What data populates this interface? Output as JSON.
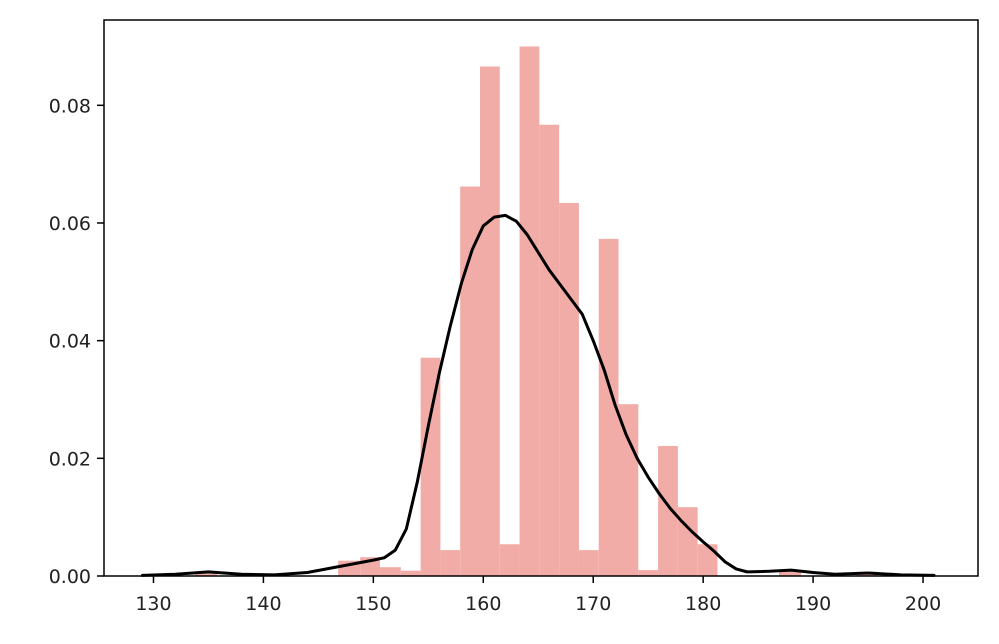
{
  "chart_data": {
    "type": "bar",
    "title": "",
    "xlabel": "",
    "ylabel": "",
    "xlim": [
      125.5,
      205
    ],
    "ylim": [
      0,
      0.0945
    ],
    "x_ticks": [
      "130",
      "140",
      "150",
      "160",
      "170",
      "180",
      "190",
      "200"
    ],
    "y_ticks": [
      "0.00",
      "0.02",
      "0.04",
      "0.06",
      "0.08"
    ],
    "grid": false,
    "legend": "none",
    "histogram": {
      "color": "#f2aca8",
      "bins": [
        {
          "start": 133.8,
          "end": 135.8,
          "value": 0.0008
        },
        {
          "start": 146.8,
          "end": 148.8,
          "value": 0.0026
        },
        {
          "start": 148.8,
          "end": 150.6,
          "value": 0.0032
        },
        {
          "start": 150.6,
          "end": 152.5,
          "value": 0.0015
        },
        {
          "start": 152.5,
          "end": 154.3,
          "value": 0.0009
        },
        {
          "start": 154.3,
          "end": 156.1,
          "value": 0.0371
        },
        {
          "start": 156.1,
          "end": 157.9,
          "value": 0.0044
        },
        {
          "start": 157.9,
          "end": 159.7,
          "value": 0.0662
        },
        {
          "start": 159.7,
          "end": 161.5,
          "value": 0.0866
        },
        {
          "start": 161.5,
          "end": 163.3,
          "value": 0.0054
        },
        {
          "start": 163.3,
          "end": 165.1,
          "value": 0.09
        },
        {
          "start": 165.1,
          "end": 166.9,
          "value": 0.0767
        },
        {
          "start": 166.9,
          "end": 168.7,
          "value": 0.0634
        },
        {
          "start": 168.7,
          "end": 170.5,
          "value": 0.0044
        },
        {
          "start": 170.5,
          "end": 172.3,
          "value": 0.0573
        },
        {
          "start": 172.3,
          "end": 174.1,
          "value": 0.0292
        },
        {
          "start": 174.1,
          "end": 175.9,
          "value": 0.001
        },
        {
          "start": 175.9,
          "end": 177.7,
          "value": 0.0221
        },
        {
          "start": 177.7,
          "end": 179.5,
          "value": 0.0117
        },
        {
          "start": 179.5,
          "end": 181.3,
          "value": 0.0054
        },
        {
          "start": 186.9,
          "end": 188.9,
          "value": 0.0009
        },
        {
          "start": 193.9,
          "end": 195.9,
          "value": 0.0007
        }
      ]
    },
    "kde": {
      "color": "#000000",
      "x": [
        129,
        132,
        135,
        138,
        141,
        144,
        146,
        148,
        150,
        151,
        152,
        153,
        154,
        155,
        156,
        157,
        158,
        159,
        160,
        161,
        162,
        163,
        164,
        165,
        166,
        167,
        168,
        169,
        170,
        171,
        172,
        173,
        174,
        175,
        176,
        177,
        178,
        179,
        180,
        181,
        182,
        183,
        184,
        186,
        188,
        190,
        192,
        195,
        198,
        201
      ],
      "y": [
        0.0001,
        0.0003,
        0.0007,
        0.0003,
        0.0002,
        0.0006,
        0.0013,
        0.002,
        0.0027,
        0.0031,
        0.0044,
        0.008,
        0.016,
        0.0255,
        0.0345,
        0.0425,
        0.0497,
        0.0555,
        0.0595,
        0.061,
        0.0613,
        0.0603,
        0.058,
        0.055,
        0.052,
        0.0495,
        0.047,
        0.0445,
        0.04,
        0.035,
        0.029,
        0.024,
        0.02,
        0.0168,
        0.014,
        0.0115,
        0.0094,
        0.0075,
        0.0058,
        0.0042,
        0.0024,
        0.0012,
        0.0007,
        0.0008,
        0.001,
        0.0006,
        0.0003,
        0.0005,
        0.0002,
        0.0001
      ]
    }
  }
}
